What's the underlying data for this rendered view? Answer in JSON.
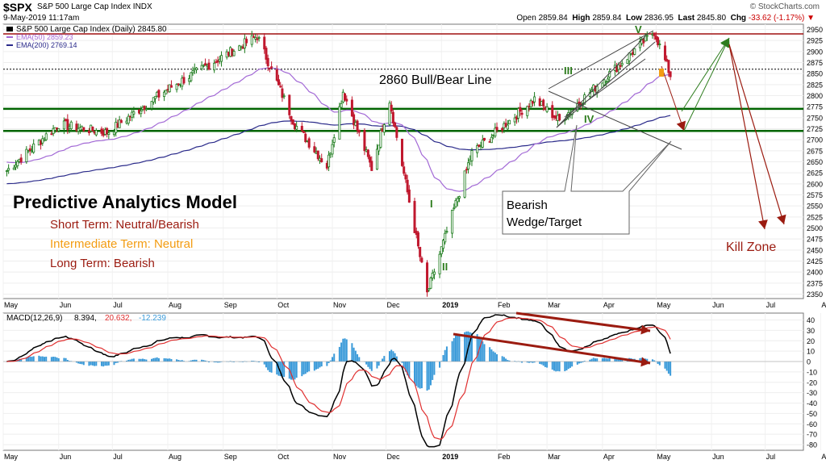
{
  "header": {
    "symbol": "$SPX",
    "name": "S&P 500 Large Cap Index  INDX",
    "date": "9-May-2019 11:17am",
    "brand": "© StockCharts.com",
    "open_label": "Open",
    "open": "2859.84",
    "high_label": "High",
    "high": "2859.84",
    "low_label": "Low",
    "low": "2836.95",
    "last_label": "Last",
    "last": "2845.80",
    "chg_label": "Chg",
    "chg": "-33.62 (-1.17%)",
    "chg_arrow": "▼"
  },
  "colors": {
    "up": "#1a7a1a",
    "down": "#c0182e",
    "ema50": "#a36ad6",
    "ema200": "#2a2a8a",
    "support": "#006400",
    "resistance": "#a01010",
    "macd": "#000000",
    "signal": "#e03030",
    "hist": "#3a9ad9",
    "annot_red": "#9b1b10",
    "annot_green": "#2e7d1e",
    "orange": "#f39c12"
  },
  "price_panel": {
    "legend_title": "S&P 500 Large Cap Index (Daily) 2845.80",
    "legend_ema50": "EMA(50) 2859.23",
    "legend_ema200": "EMA(200) 2769.14",
    "yticks": [
      "2950",
      "2925",
      "2900",
      "2875",
      "2850",
      "2825",
      "2800",
      "2775",
      "2750",
      "2725",
      "2700",
      "2675",
      "2650",
      "2625",
      "2600",
      "2575",
      "2550",
      "2525",
      "2500",
      "2475",
      "2450",
      "2425",
      "2400",
      "2375",
      "2350"
    ],
    "line_label": "2860 Bull/Bear Line",
    "model_title": "Predictive Analytics Model",
    "short_term": "Short Term: Neutral/Bearish",
    "intermediate_term": "Intermediate Term: Neutral",
    "long_term": "Long Term: Bearish",
    "wedge_label_1": "Bearish",
    "wedge_label_2": "Wedge/Target",
    "kill_zone": "Kill Zone",
    "wave_labels": [
      "I",
      "II",
      "III",
      "IV",
      "V"
    ]
  },
  "macd_panel": {
    "legend_name": "MACD(12,26,9)",
    "legend_macd": "8.394,",
    "legend_signal": "20.632,",
    "legend_hist": "-12.239",
    "yticks": [
      "40",
      "30",
      "20",
      "10",
      "0",
      "-10",
      "-20",
      "-30",
      "-40",
      "-50",
      "-60",
      "-70",
      "-80"
    ]
  },
  "x_axis": {
    "labels": [
      "May",
      "Jun",
      "Jul",
      "Aug",
      "Sep",
      "Oct",
      "Nov",
      "Dec",
      "2019",
      "Feb",
      "Mar",
      "Apr",
      "May",
      "Jun",
      "Jul",
      "Aug"
    ]
  },
  "chart_data": [
    {
      "type": "candlestick",
      "title": "S&P 500 Large Cap Index (Daily)",
      "ylim": [
        2340,
        2960
      ],
      "x_range": [
        "2018-05-01",
        "2019-08-15"
      ],
      "key_points": [
        {
          "date": "2018-05-03",
          "close": 2630
        },
        {
          "date": "2018-06-01",
          "close": 2735
        },
        {
          "date": "2018-06-28",
          "close": 2716
        },
        {
          "date": "2018-08-01",
          "close": 2815
        },
        {
          "date": "2018-09-20",
          "close": 2935
        },
        {
          "date": "2018-10-11",
          "close": 2735
        },
        {
          "date": "2018-10-29",
          "close": 2640
        },
        {
          "date": "2018-11-07",
          "close": 2810
        },
        {
          "date": "2018-11-23",
          "close": 2635
        },
        {
          "date": "2018-12-03",
          "close": 2790
        },
        {
          "date": "2018-12-24",
          "close": 2351
        },
        {
          "date": "2019-01-18",
          "close": 2670
        },
        {
          "date": "2019-02-22",
          "close": 2792
        },
        {
          "date": "2019-03-08",
          "close": 2743
        },
        {
          "date": "2019-04-30",
          "close": 2945
        },
        {
          "date": "2019-05-09",
          "close": 2846
        }
      ],
      "series": [
        {
          "name": "EMA(50)",
          "last": 2859.23
        },
        {
          "name": "EMA(200)",
          "last": 2769.14
        }
      ],
      "horizontal_levels": [
        2940,
        2860,
        2770,
        2720
      ]
    },
    {
      "type": "line",
      "title": "MACD(12,26,9)",
      "ylim": [
        -80,
        45
      ],
      "series": [
        {
          "name": "MACD",
          "last": 8.394
        },
        {
          "name": "Signal",
          "last": 20.632
        },
        {
          "name": "Histogram",
          "last": -12.239
        }
      ]
    }
  ]
}
